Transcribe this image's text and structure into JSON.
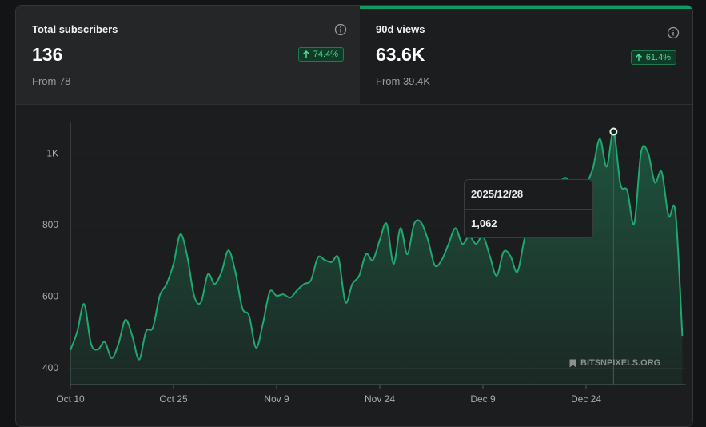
{
  "cards": [
    {
      "title": "Total subscribers",
      "value": "136",
      "change": "74.4%",
      "from": "From 78"
    },
    {
      "title": "90d views",
      "value": "63.6K",
      "change": "61.4%",
      "from": "From 39.4K"
    }
  ],
  "tooltip": {
    "date": "2025/12/28",
    "value": "1,062"
  },
  "watermark": "BITSNPIXELS.ORG",
  "chart_data": {
    "type": "area",
    "categories": [
      "Oct 10",
      null,
      null,
      null,
      null,
      null,
      null,
      null,
      null,
      null,
      null,
      null,
      null,
      null,
      null,
      "Oct 25",
      null,
      null,
      null,
      null,
      null,
      null,
      null,
      null,
      null,
      null,
      null,
      null,
      null,
      null,
      "Nov 9",
      null,
      null,
      null,
      null,
      null,
      null,
      null,
      null,
      null,
      null,
      null,
      null,
      null,
      null,
      "Nov 24",
      null,
      null,
      null,
      null,
      null,
      null,
      null,
      null,
      null,
      null,
      null,
      null,
      null,
      null,
      "Dec 9",
      null,
      null,
      null,
      null,
      null,
      null,
      null,
      null,
      null,
      null,
      null,
      null,
      null,
      null,
      "Dec 24",
      null,
      null,
      null,
      null,
      null,
      null,
      null,
      null,
      null,
      null,
      null,
      null,
      null,
      null
    ],
    "series": [
      {
        "color": "#1fa86f",
        "values": [
          451,
          503,
          580,
          469,
          453,
          474,
          429,
          469,
          536,
          491,
          425,
          503,
          514,
          603,
          636,
          692,
          775,
          714,
          603,
          585,
          663,
          636,
          670,
          730,
          670,
          569,
          547,
          458,
          525,
          614,
          603,
          607,
          598,
          619,
          636,
          647,
          710,
          703,
          697,
          708,
          585,
          636,
          659,
          719,
          703,
          759,
          804,
          692,
          792,
          719,
          804,
          808,
          759,
          688,
          703,
          748,
          792,
          748,
          770,
          748,
          770,
          714,
          659,
          726,
          714,
          670,
          759,
          837,
          859,
          875,
          893,
          915,
          933,
          911,
          893,
          915,
          960,
          1042,
          964,
          1062,
          915,
          897,
          804,
          1004,
          1004,
          920,
          949,
          826,
          837,
          491
        ]
      }
    ],
    "ylim": [
      355,
      1090
    ],
    "yticks": [
      400,
      600,
      800,
      {
        "value": 1000,
        "label": "1K"
      }
    ],
    "grid": true
  }
}
